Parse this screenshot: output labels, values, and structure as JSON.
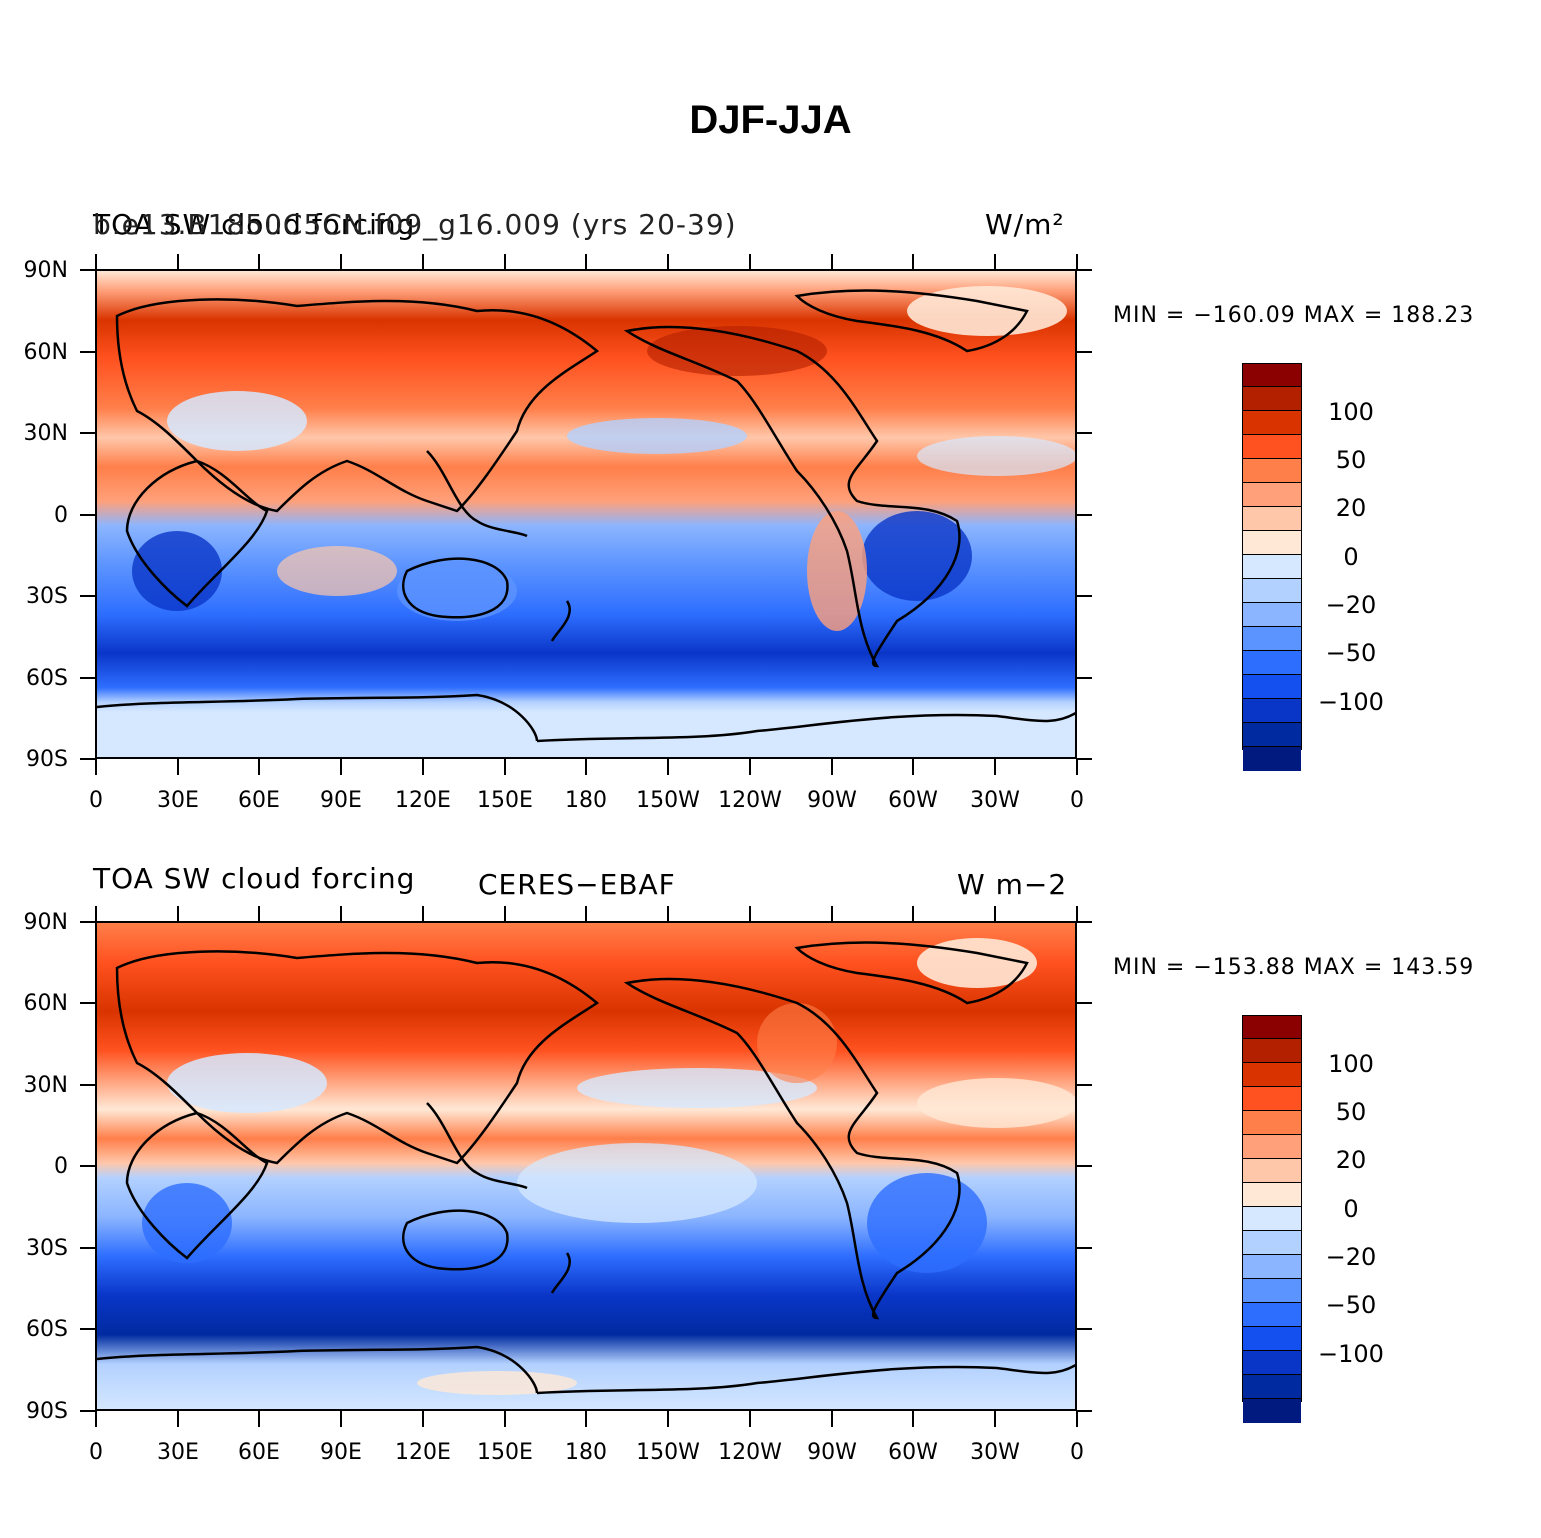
{
  "title": "DJF-JJA",
  "panels": [
    {
      "left_title": "TOA SW cloud forcing",
      "center_title": "b.e13.B1850C5CN.f09_g16.009 (yrs 20-39)",
      "right_title": "W/m²",
      "min_max": "MIN = −160.09  MAX = 188.23"
    },
    {
      "left_title": "TOA SW cloud forcing",
      "center_title": "CERES−EBAF",
      "right_title": "W m−2",
      "min_max": "MIN = −153.88  MAX = 143.59"
    }
  ],
  "lat_labels": [
    "90N",
    "60N",
    "30N",
    "0",
    "30S",
    "60S",
    "90S"
  ],
  "lon_labels": [
    "0",
    "30E",
    "60E",
    "90E",
    "120E",
    "150E",
    "180",
    "150W",
    "120W",
    "90W",
    "60W",
    "30W",
    "0"
  ],
  "colorbar": {
    "labels": [
      "100",
      "50",
      "20",
      "0",
      "−20",
      "−50",
      "−100"
    ],
    "colors": [
      "#8b0000",
      "#b22000",
      "#d93400",
      "#ff5220",
      "#ff7f4a",
      "#ffa07a",
      "#ffc7aa",
      "#ffe8d6",
      "#d6e8ff",
      "#b3d1ff",
      "#8cb5ff",
      "#5c94ff",
      "#2e6eff",
      "#1450f0",
      "#0a36c8",
      "#002aa0",
      "#001a80"
    ]
  },
  "chart_data": {
    "type": "heatmap",
    "title": "DJF-JJA",
    "xlabel": "",
    "ylabel": "",
    "x_ticks": [
      "0",
      "30E",
      "60E",
      "90E",
      "120E",
      "150E",
      "180",
      "150W",
      "120W",
      "90W",
      "60W",
      "30W",
      "0"
    ],
    "y_ticks": [
      "90N",
      "60N",
      "30N",
      "0",
      "30S",
      "60S",
      "90S"
    ],
    "colorbar_levels": [
      -100,
      -50,
      -20,
      0,
      20,
      50,
      100
    ],
    "series": [
      {
        "name": "b.e13.B1850C5CN.f09_g16.009 (yrs 20-39)",
        "min": -160.09,
        "max": 188.23
      },
      {
        "name": "CERES−EBAF",
        "min": -153.88,
        "max": 143.59
      }
    ]
  }
}
